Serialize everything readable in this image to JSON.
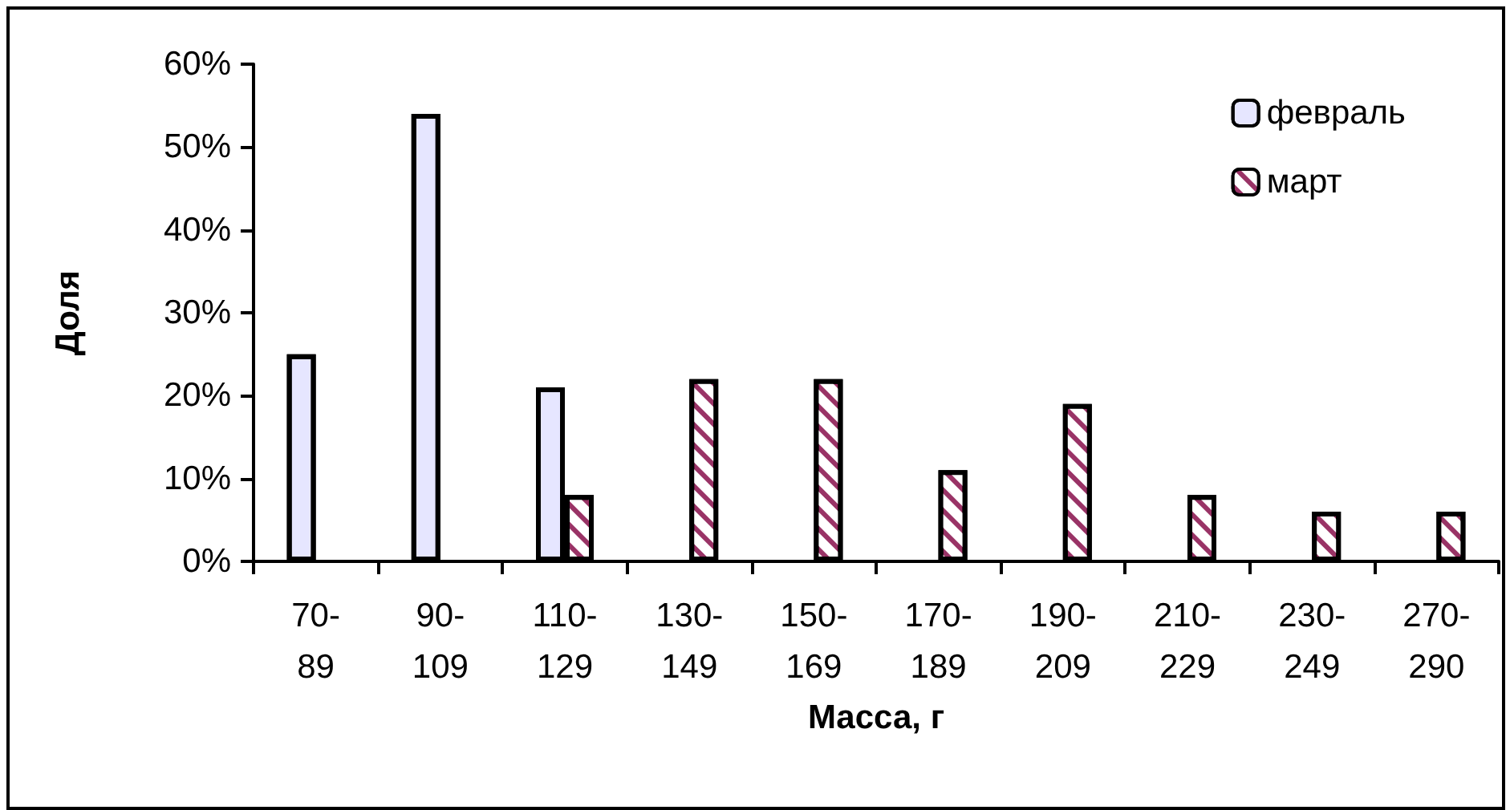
{
  "chart_data": {
    "type": "bar",
    "xlabel": "Масса, г",
    "ylabel": "Доля",
    "categories": [
      "70-89",
      "90-109",
      "110-129",
      "130-149",
      "150-169",
      "170-189",
      "190-209",
      "210-229",
      "230-249",
      "270-290"
    ],
    "series": [
      {
        "name": "февраль",
        "color": "#e6e6ff",
        "values": [
          25,
          54,
          21,
          null,
          null,
          null,
          null,
          null,
          null,
          null
        ]
      },
      {
        "name": "март",
        "color": "#993366",
        "values": [
          null,
          null,
          8,
          22,
          22,
          11,
          19,
          8,
          6,
          6
        ]
      }
    ],
    "ylim": [
      0,
      60
    ],
    "yticks": [
      {
        "value": 0,
        "label": "0%"
      },
      {
        "value": 10,
        "label": "10%"
      },
      {
        "value": 20,
        "label": "20%"
      },
      {
        "value": 30,
        "label": "30%"
      },
      {
        "value": 40,
        "label": "40%"
      },
      {
        "value": 50,
        "label": "50%"
      },
      {
        "value": 60,
        "label": "60%"
      }
    ],
    "grid": false,
    "legend": "top right"
  }
}
